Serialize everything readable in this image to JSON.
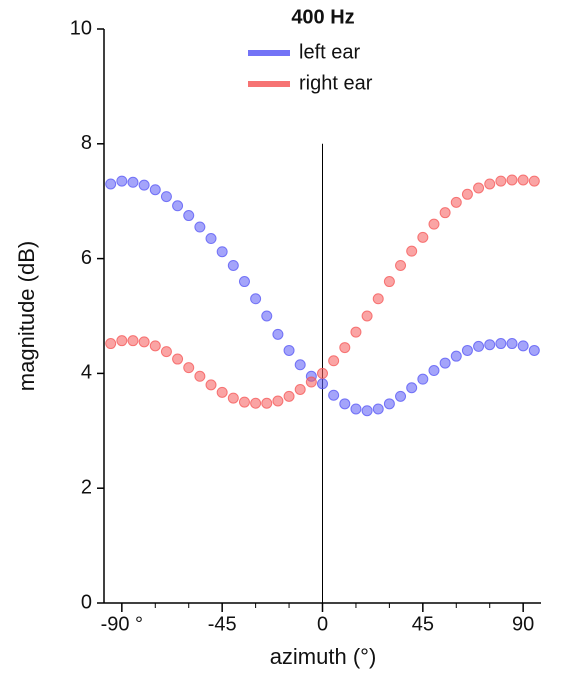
{
  "chart_data": {
    "type": "scatter",
    "title": "400 Hz",
    "x_label": "azimuth (°)",
    "y_label": "magnitude (dB)",
    "x": [
      -95,
      -90,
      -85,
      -80,
      -75,
      -70,
      -65,
      -60,
      -55,
      -50,
      -45,
      -40,
      -35,
      -30,
      -25,
      -20,
      -15,
      -10,
      -5,
      0,
      5,
      10,
      15,
      20,
      25,
      30,
      35,
      40,
      45,
      50,
      55,
      60,
      65,
      70,
      75,
      80,
      85,
      90,
      95
    ],
    "series": [
      {
        "name": "left ear",
        "color": "#5a5af5",
        "values": [
          7.3,
          7.35,
          7.33,
          7.28,
          7.2,
          7.08,
          6.92,
          6.75,
          6.55,
          6.35,
          6.12,
          5.88,
          5.6,
          5.3,
          5.0,
          4.68,
          4.4,
          4.15,
          3.95,
          3.82,
          3.62,
          3.47,
          3.38,
          3.35,
          3.38,
          3.47,
          3.6,
          3.75,
          3.9,
          4.05,
          4.18,
          4.3,
          4.4,
          4.47,
          4.5,
          4.52,
          4.52,
          4.48,
          4.4
        ]
      },
      {
        "name": "right ear",
        "color": "#f55a5a",
        "values": [
          4.52,
          4.57,
          4.57,
          4.55,
          4.48,
          4.38,
          4.25,
          4.1,
          3.95,
          3.8,
          3.67,
          3.57,
          3.5,
          3.48,
          3.48,
          3.52,
          3.6,
          3.72,
          3.85,
          4.0,
          4.22,
          4.45,
          4.72,
          5.0,
          5.3,
          5.6,
          5.88,
          6.13,
          6.37,
          6.6,
          6.8,
          6.98,
          7.12,
          7.23,
          7.3,
          7.35,
          7.37,
          7.37,
          7.35
        ]
      }
    ],
    "xlim": [
      -98,
      98
    ],
    "ylim": [
      0,
      10
    ],
    "xticks": [
      {
        "value": -90,
        "label": "-90 °"
      },
      -45,
      0,
      45,
      90
    ],
    "xminorticks": [
      -75,
      -60,
      -30,
      -15,
      15,
      30,
      60,
      75
    ],
    "yticks": [
      0,
      2,
      4,
      6,
      8,
      10
    ],
    "vline": {
      "x": 0,
      "ymax": 8
    },
    "grid": false
  }
}
